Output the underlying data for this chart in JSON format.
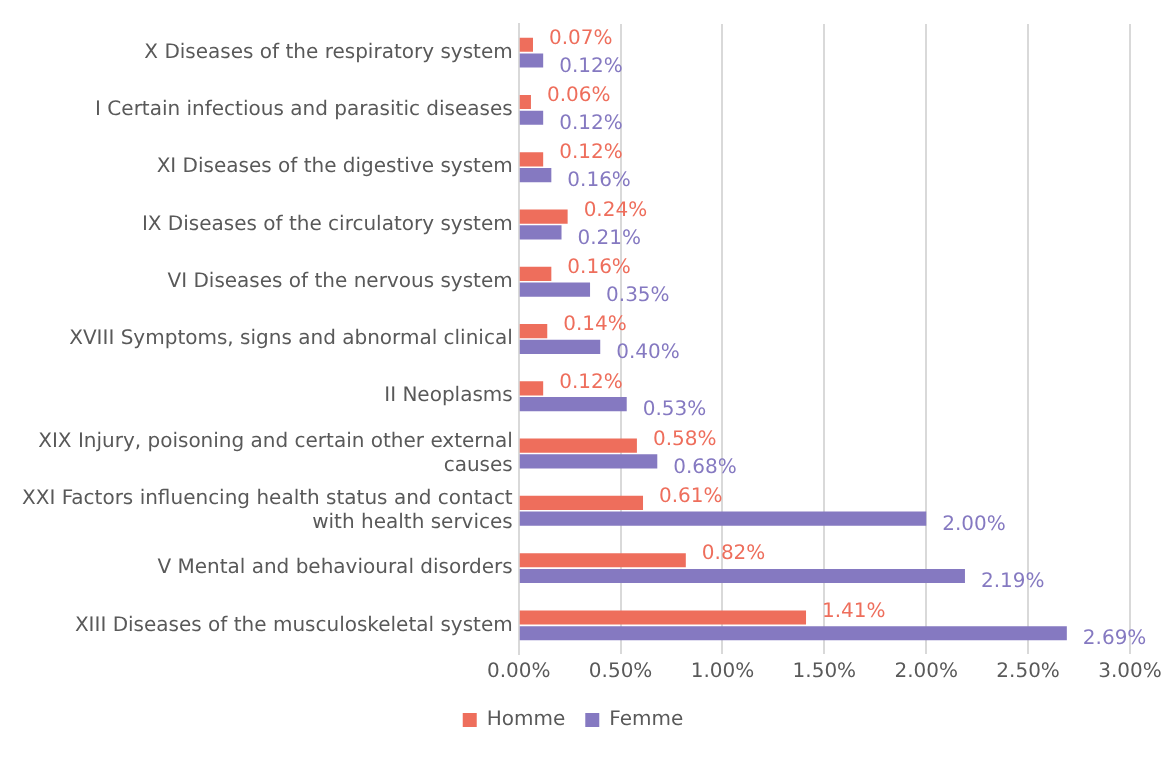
{
  "chart_data": {
    "type": "bar",
    "orientation": "horizontal",
    "categories": [
      "X Diseases of the respiratory system",
      "I Certain infectious and parasitic diseases",
      "XI Diseases of the digestive system",
      "IX Diseases of the circulatory system",
      "VI Diseases of the nervous system",
      "XVIII Symptoms, signs and abnormal clinical",
      "II Neoplasms",
      "XIX Injury, poisoning and certain other external causes",
      "XXI Factors influencing health status and contact with health services",
      "V Mental and behavioural disorders",
      "XIII Diseases of the musculoskeletal system"
    ],
    "series": [
      {
        "name": "Homme",
        "color": "#ee6e5c",
        "values": [
          0.07,
          0.06,
          0.12,
          0.24,
          0.16,
          0.14,
          0.12,
          0.58,
          0.61,
          0.82,
          1.41
        ],
        "value_labels": [
          "0.07%",
          "0.06%",
          "0.12%",
          "0.24%",
          "0.16%",
          "0.14%",
          "0.12%",
          "0.58%",
          "0.61%",
          "0.82%",
          "1.41%"
        ]
      },
      {
        "name": "Femme",
        "color": "#8579c1",
        "values": [
          0.12,
          0.12,
          0.16,
          0.21,
          0.35,
          0.4,
          0.53,
          0.68,
          2.0,
          2.19,
          2.69
        ],
        "value_labels": [
          "0.12%",
          "0.12%",
          "0.16%",
          "0.21%",
          "0.35%",
          "0.40%",
          "0.53%",
          "0.68%",
          "2.00%",
          "2.19%",
          "2.69%"
        ]
      }
    ],
    "xlim": [
      0,
      3
    ],
    "xticks": [
      {
        "value": 0,
        "label": "0.00%"
      },
      {
        "value": 0.5,
        "label": "0.50%"
      },
      {
        "value": 1,
        "label": "1.00%"
      },
      {
        "value": 1.5,
        "label": "1.50%"
      },
      {
        "value": 2,
        "label": "2.00%"
      },
      {
        "value": 2.5,
        "label": "2.50%"
      },
      {
        "value": 3,
        "label": "3.00%"
      }
    ],
    "grid": "x",
    "legend": "bottom"
  }
}
